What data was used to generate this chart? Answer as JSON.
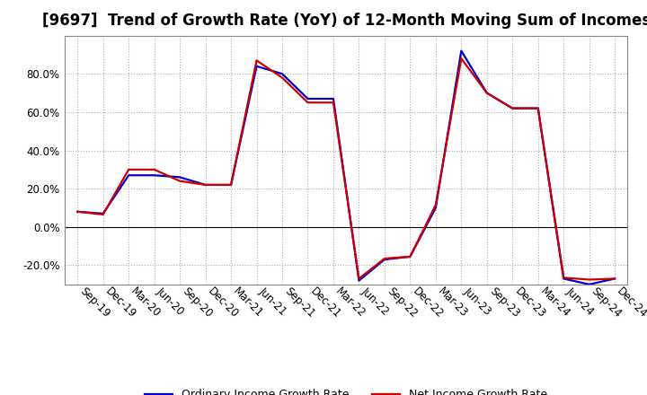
{
  "title": "[9697]  Trend of Growth Rate (YoY) of 12-Month Moving Sum of Incomes",
  "background_color": "#ffffff",
  "plot_bg_color": "#ffffff",
  "grid_color": "#aaaaaa",
  "x_labels": [
    "Sep-19",
    "Dec-19",
    "Mar-20",
    "Jun-20",
    "Sep-20",
    "Dec-20",
    "Mar-21",
    "Jun-21",
    "Sep-21",
    "Dec-21",
    "Mar-22",
    "Jun-22",
    "Sep-22",
    "Dec-22",
    "Mar-23",
    "Jun-23",
    "Sep-23",
    "Dec-23",
    "Mar-24",
    "Jun-24",
    "Sep-24",
    "Dec-24"
  ],
  "ordinary_income": [
    0.08,
    0.07,
    0.27,
    0.27,
    0.26,
    0.22,
    0.22,
    0.84,
    0.8,
    0.67,
    0.67,
    -0.28,
    -0.17,
    -0.155,
    0.1,
    0.92,
    0.7,
    0.62,
    0.62,
    -0.27,
    -0.3,
    -0.27
  ],
  "net_income": [
    0.08,
    0.065,
    0.3,
    0.3,
    0.24,
    0.22,
    0.22,
    0.87,
    0.78,
    0.65,
    0.65,
    -0.27,
    -0.165,
    -0.155,
    0.115,
    0.88,
    0.7,
    0.62,
    0.62,
    -0.265,
    -0.275,
    -0.27
  ],
  "ordinary_color": "#0000cc",
  "net_color": "#cc0000",
  "ylim": [
    -0.3,
    1.0
  ],
  "yticks": [
    -0.2,
    0.0,
    0.2,
    0.4,
    0.6,
    0.8
  ],
  "line_width": 1.6,
  "title_fontsize": 12,
  "legend_fontsize": 9,
  "tick_fontsize": 8.5
}
